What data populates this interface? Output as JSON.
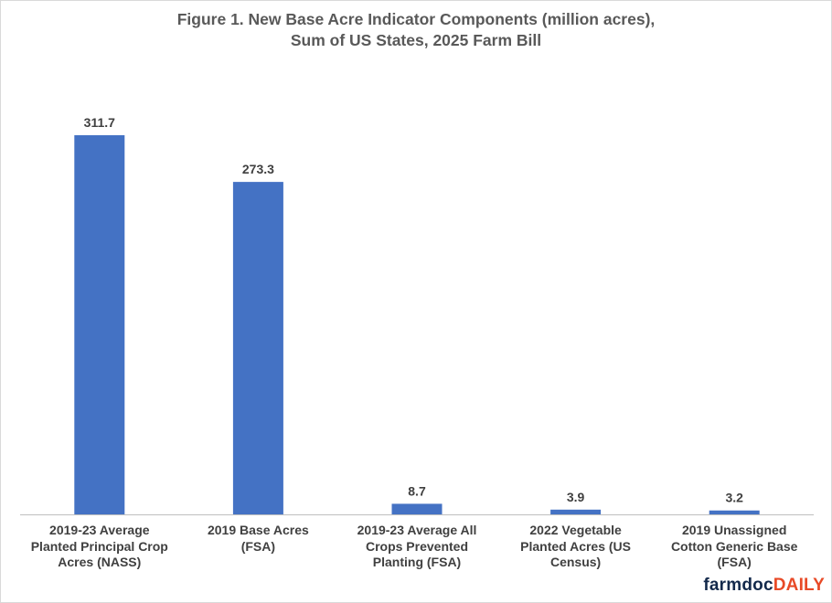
{
  "chart_data": {
    "type": "bar",
    "title": "Figure 1.  New Base Acre Indicator Components (million acres),",
    "subtitle": "Sum of US States, 2025 Farm Bill",
    "categories": [
      [
        "2019-23 Average",
        "Planted Principal Crop",
        "Acres (NASS)"
      ],
      [
        "2019 Base Acres",
        "(FSA)"
      ],
      [
        "2019-23 Average All",
        "Crops Prevented",
        "Planting (FSA)"
      ],
      [
        "2022 Vegetable",
        "Planted Acres (US",
        "Census)"
      ],
      [
        "2019 Unassigned",
        "Cotton Generic Base",
        "(FSA)"
      ]
    ],
    "values": [
      311.7,
      273.3,
      8.7,
      3.9,
      3.2
    ],
    "data_labels": [
      "311.7",
      "273.3",
      "8.7",
      "3.9",
      "3.2"
    ],
    "xlabel": "",
    "ylabel": "",
    "ylim": [
      0,
      350
    ],
    "grid": false,
    "legend": "none",
    "bar_color": "#4472c4",
    "axis_color": "#bfbfbf"
  },
  "brand": {
    "part_a": "farmdoc",
    "part_b": "DAILY",
    "color_a": "#13294b",
    "color_b": "#e84a27"
  }
}
